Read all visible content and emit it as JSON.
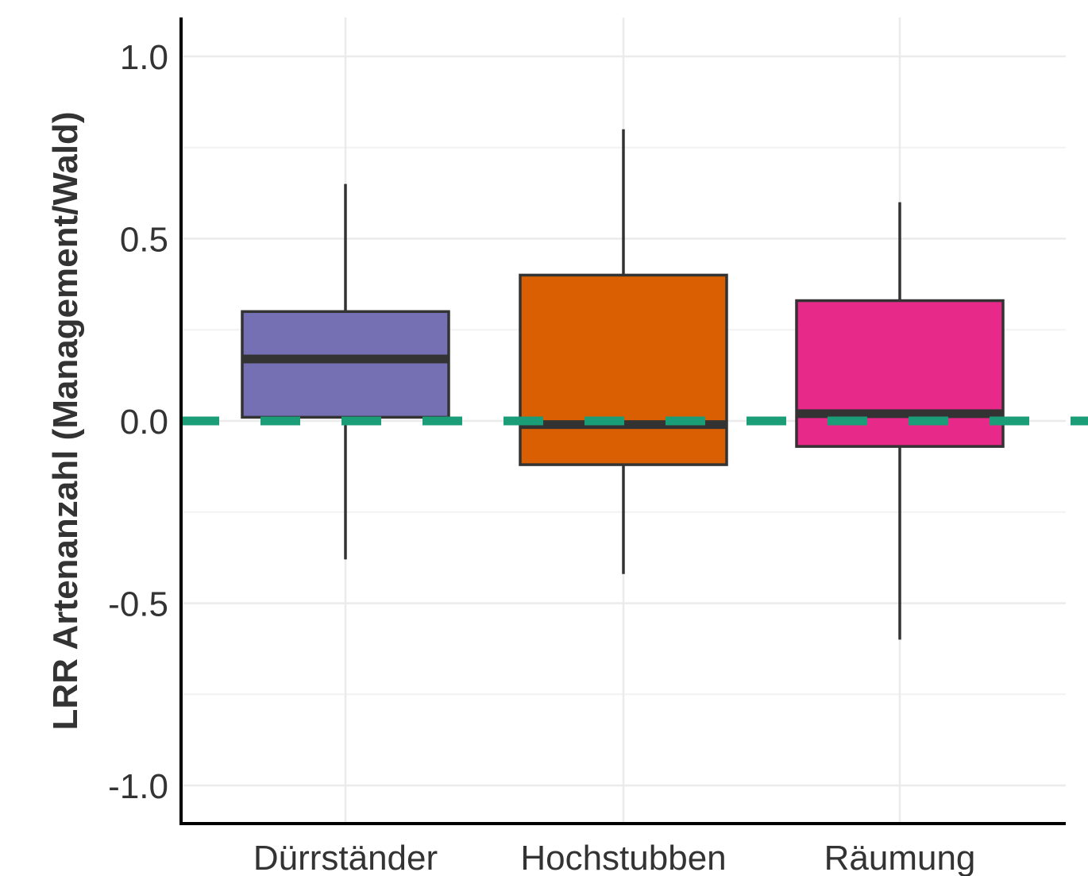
{
  "chart_data": {
    "type": "box",
    "title": "",
    "xlabel": "",
    "ylabel": "LRR Artenanzahl (Management/Wald)",
    "ylim": [
      -1.1,
      1.1
    ],
    "yticks": [
      -1.0,
      -0.5,
      0.0,
      0.5,
      1.0
    ],
    "ytick_labels": [
      "-1.0",
      "-0.5",
      "0.0",
      "0.5",
      "1.0"
    ],
    "grid": true,
    "reference_line": {
      "y": 0.0,
      "style": "dashed",
      "color": "#1b9e77"
    },
    "categories": [
      "Dürrständer",
      "Hochstubben",
      "Räumung"
    ],
    "boxes": [
      {
        "category": "Dürrständer",
        "whisker_low": -0.38,
        "q1": 0.01,
        "median": 0.17,
        "q3": 0.3,
        "whisker_high": 0.65,
        "color": "#7570b3"
      },
      {
        "category": "Hochstubben",
        "whisker_low": -0.42,
        "q1": -0.12,
        "median": -0.01,
        "q3": 0.4,
        "whisker_high": 0.8,
        "color": "#d95f02"
      },
      {
        "category": "Räumung",
        "whisker_low": -0.6,
        "q1": -0.07,
        "median": 0.02,
        "q3": 0.33,
        "whisker_high": 0.6,
        "color": "#e7298a"
      }
    ]
  }
}
